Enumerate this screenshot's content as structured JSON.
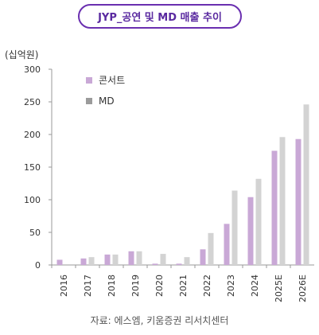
{
  "chart_data": {
    "type": "bar",
    "title": "JYP_공연 및 MD 매출 추이",
    "unit_label": "(십억원)",
    "categories": [
      "2016",
      "2017",
      "2018",
      "2019",
      "2020",
      "2021",
      "2022",
      "2023",
      "2024",
      "2025E",
      "2026E"
    ],
    "series": [
      {
        "name": "콘서트",
        "color": "#c9a8d6",
        "values": [
          8,
          10,
          16,
          21,
          2,
          2,
          24,
          63,
          104,
          175,
          193
        ]
      },
      {
        "name": "MD",
        "color": "#d3d3d3",
        "legend_color": "#9b9b9b",
        "values": [
          0,
          12,
          16,
          21,
          17,
          12,
          49,
          114,
          132,
          196,
          246
        ]
      }
    ],
    "ylim": [
      0,
      300
    ],
    "yticks": [
      0,
      50,
      100,
      150,
      200,
      250,
      300
    ],
    "grid": false,
    "legend_position": "top-left",
    "source": "자료: 에스엠, 키움증권 리서치센터"
  }
}
